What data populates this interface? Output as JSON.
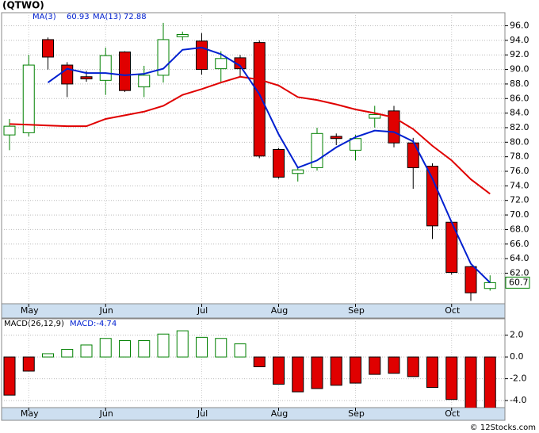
{
  "chart_data": [
    {
      "type": "candlestick",
      "title": "(QTWO)",
      "categories": [
        null,
        "May",
        null,
        null,
        null,
        "Jun",
        null,
        null,
        null,
        null,
        "Jul",
        null,
        null,
        null,
        "Aug",
        null,
        null,
        null,
        "Sep",
        null,
        null,
        null,
        null,
        "Oct",
        null,
        null
      ],
      "open": [
        81.0,
        81.3,
        94.1,
        90.6,
        89.0,
        88.5,
        92.4,
        87.6,
        89.2,
        94.5,
        93.9,
        90.1,
        91.6,
        93.7,
        79.0,
        75.7,
        76.5,
        80.8,
        78.9,
        83.3,
        84.3,
        79.9,
        76.7,
        69.0,
        62.9,
        59.9
      ],
      "high": [
        83.2,
        92.0,
        94.4,
        91.0,
        89.8,
        93.0,
        92.5,
        90.5,
        96.4,
        95.2,
        95.0,
        92.5,
        92.0,
        94.0,
        79.2,
        76.6,
        82.0,
        81.2,
        81.0,
        85.0,
        85.0,
        80.6,
        77.1,
        69.2,
        63.0,
        61.7
      ],
      "low": [
        78.9,
        80.8,
        90.0,
        86.2,
        88.3,
        86.5,
        86.9,
        86.2,
        88.2,
        94.0,
        89.3,
        88.3,
        89.0,
        77.8,
        75.0,
        74.6,
        76.1,
        79.6,
        77.5,
        82.0,
        79.3,
        73.6,
        66.7,
        61.8,
        58.2,
        59.6
      ],
      "close": [
        82.2,
        90.6,
        91.7,
        88.0,
        88.7,
        91.9,
        87.1,
        89.2,
        94.1,
        94.8,
        90.0,
        91.5,
        90.1,
        78.1,
        75.2,
        76.2,
        81.2,
        80.5,
        80.5,
        83.8,
        79.9,
        76.5,
        68.5,
        62.1,
        59.3,
        60.7
      ],
      "series": [
        {
          "name": "MA(13)",
          "last": 72.88,
          "color": "#e00000",
          "values": [
            82.5,
            82.4,
            82.3,
            82.2,
            82.2,
            83.2,
            83.7,
            84.2,
            85.0,
            86.5,
            87.3,
            88.2,
            89.0,
            88.6,
            87.8,
            86.2,
            85.8,
            85.2,
            84.5,
            84.0,
            83.4,
            81.8,
            79.5,
            77.5,
            74.9,
            72.9
          ]
        },
        {
          "name": "MA(3)",
          "last": 60.93,
          "color": "#0020d0",
          "values": [
            null,
            null,
            88.2,
            90.1,
            89.5,
            89.5,
            89.2,
            89.4,
            90.1,
            92.7,
            93.0,
            92.1,
            90.5,
            86.6,
            81.1,
            76.5,
            77.5,
            79.3,
            80.7,
            81.6,
            81.4,
            80.1,
            75.0,
            69.0,
            63.3,
            60.7
          ]
        }
      ],
      "up_color": "#008000",
      "down_color": "#e00000",
      "last_price": 60.7,
      "ylim": [
        57.8,
        97.8
      ],
      "yticks": [
        {
          "value": 62,
          "label": "62.0"
        },
        {
          "value": 64,
          "label": "64.0"
        },
        {
          "value": 66,
          "label": "66.0"
        },
        {
          "value": 68,
          "label": "68.0"
        },
        {
          "value": 70,
          "label": "70.0"
        },
        {
          "value": 72,
          "label": "72.0"
        },
        {
          "value": 74,
          "label": "74.0"
        },
        {
          "value": 76,
          "label": "76.0"
        },
        {
          "value": 78,
          "label": "78.0"
        },
        {
          "value": 80,
          "label": "80.0"
        },
        {
          "value": 82,
          "label": "82.0"
        },
        {
          "value": 84,
          "label": "84.0"
        },
        {
          "value": 86,
          "label": "86.0"
        },
        {
          "value": 88,
          "label": "88.0"
        },
        {
          "value": 90,
          "label": "90.0"
        },
        {
          "value": 92,
          "label": "92.0"
        },
        {
          "value": 94,
          "label": "94.0"
        },
        {
          "value": 96,
          "label": "96.0"
        }
      ],
      "grid": true
    },
    {
      "type": "bar",
      "title": "MACD(26,12,9)",
      "subtitle": "MACD:-4.74",
      "categories": [
        null,
        "May",
        null,
        null,
        null,
        "Jun",
        null,
        null,
        null,
        null,
        "Jul",
        null,
        null,
        null,
        "Aug",
        null,
        null,
        null,
        "Sep",
        null,
        null,
        null,
        null,
        "Oct",
        null,
        null
      ],
      "values": [
        -3.5,
        -1.3,
        0.3,
        0.7,
        1.1,
        1.7,
        1.5,
        1.5,
        2.1,
        2.4,
        1.8,
        1.7,
        1.2,
        -0.9,
        -2.5,
        -3.2,
        -2.9,
        -2.6,
        -2.4,
        -1.6,
        -1.5,
        -1.8,
        -2.8,
        -3.9,
        -4.7,
        -4.74
      ],
      "up_color": "#008000",
      "down_color": "#e00000",
      "ylim": [
        -4.65,
        3.5
      ],
      "yticks": [
        {
          "value": -4,
          "label": "-4.0"
        },
        {
          "value": -2,
          "label": "-2.0"
        },
        {
          "value": 0,
          "label": "0.0"
        },
        {
          "value": 2,
          "label": "2.0"
        }
      ],
      "grid": true
    }
  ],
  "footer": "© 12Stocks.com"
}
